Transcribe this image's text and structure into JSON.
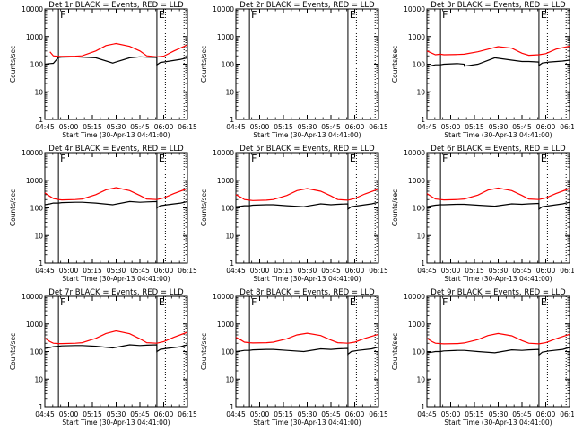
{
  "figure": {
    "background": "#ffffff",
    "axis_color": "#000000"
  },
  "chart_data": [
    {
      "type": "line",
      "panel": 1,
      "title": "Det 1r BLACK = Events, RED = LLD",
      "xlabel": "Start Time (30-Apr-13 04:41:00)",
      "ylabel": "Counts/sec",
      "xtick_labels": [
        "04:45",
        "05:00",
        "05:15",
        "05:30",
        "05:45",
        "06:00",
        "06:15"
      ],
      "ytick_labels": [
        "1",
        "10",
        "100",
        "1000",
        "10000"
      ],
      "ylim": [
        1,
        10000
      ],
      "yscale": "log",
      "series": [
        {
          "color": "#000000",
          "x": [
            0,
            3,
            5,
            8,
            10,
            18,
            22,
            30,
            40,
            50,
            56,
            56,
            60,
            66,
            66,
            68,
            72,
            80,
            84
          ],
          "y": [
            100,
            105,
            108,
            175,
            180,
            185,
            180,
            170,
            110,
            170,
            185,
            185,
            180,
            175,
            95,
            115,
            125,
            150,
            170
          ]
        },
        {
          "color": "#ff0000",
          "x": [
            3,
            5,
            8,
            10,
            18,
            22,
            30,
            36,
            42,
            50,
            56,
            60,
            66,
            70,
            76,
            84
          ],
          "y": [
            280,
            200,
            190,
            190,
            195,
            200,
            300,
            470,
            560,
            440,
            300,
            200,
            185,
            195,
            300,
            500
          ]
        }
      ],
      "vertical_lines": [
        {
          "x": 8,
          "style": "solid",
          "label": "F"
        },
        {
          "x": 66,
          "style": "solid",
          "label": "E"
        },
        {
          "x": 71,
          "style": "dotted"
        },
        {
          "x": 82,
          "style": "dotted"
        }
      ]
    },
    {
      "type": "line",
      "panel": 2,
      "title": "Det 2r BLACK = Events, RED = LLD",
      "xlabel": "Start Time (30-Apr-13 04:41:00)",
      "ylabel": "Counts/sec",
      "xtick_labels": [
        "04:45",
        "05:00",
        "05:15",
        "05:30",
        "05:45",
        "06:00",
        "06:15"
      ],
      "ytick_labels": [
        "1",
        "10",
        "100",
        "1000",
        "10000"
      ],
      "ylim": [
        1,
        10000
      ],
      "yscale": "log",
      "series": [],
      "vertical_lines": [
        {
          "x": 8,
          "style": "solid",
          "label": "F"
        },
        {
          "x": 66,
          "style": "solid",
          "label": "E"
        },
        {
          "x": 71,
          "style": "dotted"
        },
        {
          "x": 82,
          "style": "dotted"
        }
      ]
    },
    {
      "type": "line",
      "panel": 3,
      "title": "Det 3r BLACK = Events, RED = LLD",
      "xlabel": "Start Time (30-Apr-13 04:41:00)",
      "ylabel": "Counts/sec",
      "xtick_labels": [
        "04:45",
        "05:00",
        "05:15",
        "05:30",
        "05:45",
        "06:00",
        "06:15"
      ],
      "ytick_labels": [
        "1",
        "10",
        "100",
        "1000",
        "10000"
      ],
      "ylim": [
        1,
        10000
      ],
      "yscale": "log",
      "series": [
        {
          "color": "#000000",
          "x": [
            0,
            3,
            5,
            8,
            10,
            18,
            22,
            22,
            30,
            40,
            50,
            56,
            56,
            60,
            66,
            66,
            68,
            72,
            80,
            84
          ],
          "y": [
            80,
            90,
            95,
            95,
            100,
            105,
            100,
            85,
            100,
            170,
            140,
            125,
            125,
            125,
            120,
            90,
            110,
            120,
            130,
            140
          ]
        },
        {
          "color": "#ff0000",
          "x": [
            0,
            3,
            5,
            8,
            10,
            18,
            22,
            30,
            36,
            42,
            50,
            56,
            60,
            66,
            70,
            76,
            84
          ],
          "y": [
            300,
            250,
            220,
            230,
            220,
            225,
            230,
            280,
            350,
            430,
            380,
            250,
            210,
            220,
            240,
            350,
            450
          ]
        }
      ],
      "vertical_lines": [
        {
          "x": 8,
          "style": "solid",
          "label": "F"
        },
        {
          "x": 66,
          "style": "solid",
          "label": "E"
        },
        {
          "x": 71,
          "style": "dotted"
        },
        {
          "x": 82,
          "style": "dotted"
        }
      ]
    },
    {
      "type": "line",
      "panel": 4,
      "title": "Det 4r BLACK = Events, RED = LLD",
      "xlabel": "Start Time (30-Apr-13 04:41:00)",
      "ylabel": "Counts/sec",
      "xtick_labels": [
        "04:45",
        "05:00",
        "05:15",
        "05:30",
        "05:45",
        "06:00",
        "06:15"
      ],
      "ytick_labels": [
        "1",
        "10",
        "100",
        "1000",
        "10000"
      ],
      "ylim": [
        1,
        10000
      ],
      "yscale": "log",
      "series": [
        {
          "color": "#000000",
          "x": [
            0,
            3,
            5,
            8,
            10,
            18,
            22,
            30,
            40,
            50,
            56,
            56,
            60,
            66,
            66,
            68,
            72,
            80,
            84
          ],
          "y": [
            130,
            140,
            150,
            150,
            155,
            160,
            160,
            150,
            130,
            170,
            160,
            160,
            165,
            170,
            100,
            120,
            130,
            150,
            170
          ]
        },
        {
          "color": "#ff0000",
          "x": [
            0,
            3,
            5,
            8,
            10,
            18,
            22,
            30,
            36,
            42,
            50,
            56,
            60,
            66,
            70,
            76,
            84
          ],
          "y": [
            350,
            260,
            220,
            200,
            195,
            200,
            210,
            300,
            450,
            540,
            420,
            280,
            210,
            200,
            230,
            330,
            500
          ]
        }
      ],
      "vertical_lines": [
        {
          "x": 8,
          "style": "solid",
          "label": "F"
        },
        {
          "x": 66,
          "style": "solid",
          "label": "E"
        },
        {
          "x": 71,
          "style": "dotted"
        },
        {
          "x": 82,
          "style": "dotted"
        }
      ]
    },
    {
      "type": "line",
      "panel": 5,
      "title": "Det 5r BLACK = Events, RED = LLD",
      "xlabel": "Start Time (30-Apr-13 04:41:00)",
      "ylabel": "Counts/sec",
      "xtick_labels": [
        "04:45",
        "05:00",
        "05:15",
        "05:30",
        "05:45",
        "06:00",
        "06:15"
      ],
      "ytick_labels": [
        "1",
        "10",
        "100",
        "1000",
        "10000"
      ],
      "ylim": [
        1,
        10000
      ],
      "yscale": "log",
      "series": [
        {
          "color": "#000000",
          "x": [
            0,
            3,
            5,
            8,
            10,
            18,
            22,
            30,
            40,
            50,
            56,
            56,
            60,
            66,
            66,
            68,
            72,
            80,
            84
          ],
          "y": [
            110,
            115,
            120,
            120,
            125,
            130,
            130,
            120,
            110,
            140,
            130,
            130,
            135,
            140,
            90,
            110,
            120,
            140,
            160
          ]
        },
        {
          "color": "#ff0000",
          "x": [
            0,
            3,
            5,
            8,
            10,
            18,
            22,
            30,
            36,
            42,
            50,
            56,
            60,
            66,
            70,
            76,
            84
          ],
          "y": [
            300,
            240,
            200,
            190,
            185,
            190,
            200,
            280,
            420,
            500,
            400,
            270,
            200,
            190,
            220,
            320,
            480
          ]
        }
      ],
      "vertical_lines": [
        {
          "x": 8,
          "style": "solid",
          "label": "F"
        },
        {
          "x": 66,
          "style": "solid",
          "label": "E"
        },
        {
          "x": 71,
          "style": "dotted"
        },
        {
          "x": 82,
          "style": "dotted"
        }
      ]
    },
    {
      "type": "line",
      "panel": 6,
      "title": "Det 6r BLACK = Events, RED = LLD",
      "xlabel": "Start Time (30-Apr-13 04:41:00)",
      "ylabel": "Counts/sec",
      "xtick_labels": [
        "04:45",
        "05:00",
        "05:15",
        "05:30",
        "05:45",
        "06:00",
        "06:15"
      ],
      "ytick_labels": [
        "1",
        "10",
        "100",
        "1000",
        "10000"
      ],
      "ylim": [
        1,
        10000
      ],
      "yscale": "log",
      "series": [
        {
          "color": "#000000",
          "x": [
            0,
            3,
            5,
            8,
            10,
            18,
            22,
            30,
            40,
            50,
            56,
            56,
            60,
            66,
            66,
            68,
            72,
            80,
            84
          ],
          "y": [
            110,
            120,
            125,
            130,
            130,
            135,
            135,
            125,
            115,
            140,
            135,
            135,
            140,
            145,
            90,
            110,
            120,
            140,
            160
          ]
        },
        {
          "color": "#ff0000",
          "x": [
            0,
            3,
            5,
            8,
            10,
            18,
            22,
            30,
            36,
            42,
            50,
            56,
            60,
            66,
            70,
            76,
            84
          ],
          "y": [
            330,
            250,
            210,
            200,
            195,
            200,
            210,
            290,
            440,
            520,
            420,
            280,
            210,
            200,
            230,
            330,
            500
          ]
        }
      ],
      "vertical_lines": [
        {
          "x": 8,
          "style": "solid",
          "label": "F"
        },
        {
          "x": 66,
          "style": "solid",
          "label": "E"
        },
        {
          "x": 71,
          "style": "dotted"
        },
        {
          "x": 82,
          "style": "dotted"
        }
      ]
    },
    {
      "type": "line",
      "panel": 7,
      "title": "Det 7r BLACK = Events, RED = LLD",
      "xlabel": "Start Time (30-Apr-13 04:41:00)",
      "ylabel": "Counts/sec",
      "xtick_labels": [
        "04:45",
        "05:00",
        "05:15",
        "05:30",
        "05:45",
        "06:00",
        "06:15"
      ],
      "ytick_labels": [
        "1",
        "10",
        "100",
        "1000",
        "10000"
      ],
      "ylim": [
        1,
        10000
      ],
      "yscale": "log",
      "series": [
        {
          "color": "#000000",
          "x": [
            0,
            3,
            5,
            8,
            10,
            18,
            22,
            30,
            40,
            50,
            56,
            56,
            60,
            66,
            66,
            68,
            72,
            80,
            84
          ],
          "y": [
            130,
            140,
            150,
            155,
            160,
            165,
            165,
            155,
            135,
            175,
            165,
            165,
            170,
            175,
            100,
            120,
            130,
            150,
            175
          ]
        },
        {
          "color": "#ff0000",
          "x": [
            0,
            3,
            5,
            8,
            10,
            18,
            22,
            30,
            36,
            42,
            50,
            56,
            60,
            66,
            70,
            76,
            84
          ],
          "y": [
            300,
            230,
            200,
            195,
            195,
            200,
            210,
            300,
            450,
            560,
            440,
            290,
            210,
            200,
            230,
            330,
            500
          ]
        }
      ],
      "vertical_lines": [
        {
          "x": 8,
          "style": "solid",
          "label": "F"
        },
        {
          "x": 66,
          "style": "solid",
          "label": "E"
        },
        {
          "x": 71,
          "style": "dotted"
        },
        {
          "x": 82,
          "style": "dotted"
        }
      ]
    },
    {
      "type": "line",
      "panel": 8,
      "title": "Det 8r BLACK = Events, RED = LLD",
      "xlabel": "Start Time (30-Apr-13 04:41:00)",
      "ylabel": "Counts/sec",
      "xtick_labels": [
        "04:45",
        "05:00",
        "05:15",
        "05:30",
        "05:45",
        "06:00",
        "06:15"
      ],
      "ytick_labels": [
        "1",
        "10",
        "100",
        "1000",
        "10000"
      ],
      "ylim": [
        1,
        10000
      ],
      "yscale": "log",
      "series": [
        {
          "color": "#000000",
          "x": [
            0,
            3,
            5,
            8,
            10,
            18,
            22,
            30,
            40,
            50,
            56,
            56,
            60,
            66,
            66,
            68,
            72,
            80,
            84
          ],
          "y": [
            100,
            105,
            110,
            110,
            115,
            120,
            120,
            110,
            100,
            125,
            120,
            120,
            125,
            130,
            80,
            100,
            110,
            125,
            145
          ]
        },
        {
          "color": "#ff0000",
          "x": [
            0,
            3,
            5,
            8,
            10,
            18,
            22,
            30,
            36,
            42,
            50,
            56,
            60,
            66,
            70,
            76,
            84
          ],
          "y": [
            330,
            260,
            220,
            210,
            205,
            210,
            220,
            290,
            400,
            460,
            380,
            260,
            210,
            200,
            220,
            300,
            420
          ]
        }
      ],
      "vertical_lines": [
        {
          "x": 8,
          "style": "solid",
          "label": "F"
        },
        {
          "x": 66,
          "style": "solid",
          "label": "E"
        },
        {
          "x": 71,
          "style": "dotted"
        },
        {
          "x": 82,
          "style": "dotted"
        }
      ]
    },
    {
      "type": "line",
      "panel": 9,
      "title": "Det 9r BLACK = Events, RED = LLD",
      "xlabel": "Start Time (30-Apr-13 04:41:00)",
      "ylabel": "Counts/sec",
      "xtick_labels": [
        "04:45",
        "05:00",
        "05:15",
        "05:30",
        "05:45",
        "06:00",
        "06:15"
      ],
      "ytick_labels": [
        "1",
        "10",
        "100",
        "1000",
        "10000"
      ],
      "ylim": [
        1,
        10000
      ],
      "yscale": "log",
      "series": [
        {
          "color": "#000000",
          "x": [
            0,
            3,
            5,
            8,
            10,
            18,
            22,
            30,
            40,
            50,
            56,
            56,
            60,
            66,
            66,
            68,
            72,
            80,
            84
          ],
          "y": [
            90,
            95,
            100,
            100,
            105,
            110,
            110,
            100,
            90,
            115,
            110,
            110,
            115,
            120,
            75,
            95,
            105,
            120,
            140
          ]
        },
        {
          "color": "#ff0000",
          "x": [
            0,
            3,
            5,
            8,
            10,
            18,
            22,
            30,
            36,
            42,
            50,
            56,
            60,
            66,
            70,
            76,
            84
          ],
          "y": [
            300,
            230,
            200,
            195,
            190,
            195,
            205,
            270,
            380,
            450,
            370,
            250,
            200,
            190,
            210,
            290,
            420
          ]
        }
      ],
      "vertical_lines": [
        {
          "x": 8,
          "style": "solid",
          "label": "F"
        },
        {
          "x": 66,
          "style": "solid",
          "label": "E"
        },
        {
          "x": 71,
          "style": "dotted"
        },
        {
          "x": 82,
          "style": "dotted"
        }
      ]
    }
  ]
}
